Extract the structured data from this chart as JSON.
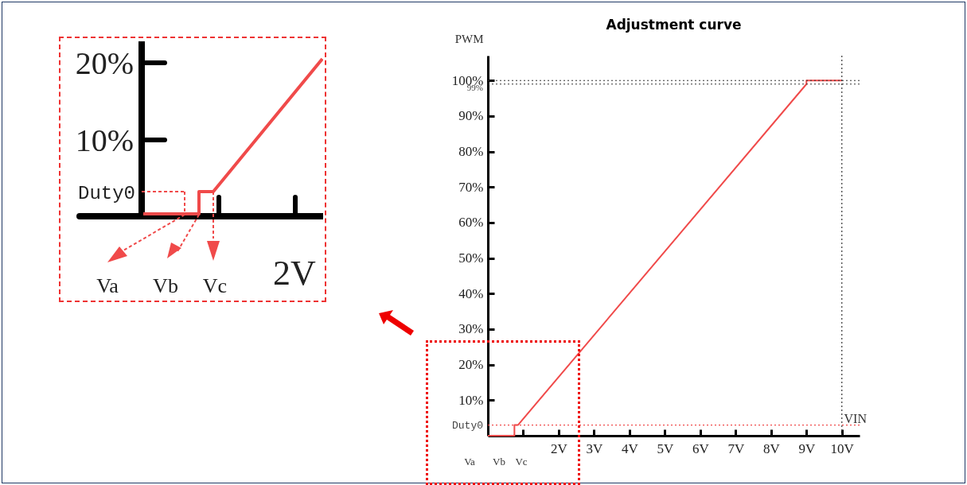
{
  "chart_data": {
    "type": "line",
    "title": "Adjustment curve",
    "xlabel": "VIN",
    "ylabel": "PWM",
    "series": [
      {
        "color": "#f04a4a",
        "x": [
          0,
          0.75,
          0.75,
          0.85,
          9,
          9,
          10
        ],
        "values": [
          0,
          0,
          3,
          3,
          99,
          100,
          100
        ]
      }
    ],
    "xlim": [
      0,
      10.5
    ],
    "ylim": [
      0,
      107
    ],
    "xticks": [
      {
        "value": 1,
        "label": null
      },
      {
        "value": 2,
        "label": "2V"
      },
      {
        "value": 3,
        "label": "3V"
      },
      {
        "value": 4,
        "label": "4V"
      },
      {
        "value": 5,
        "label": "5V"
      },
      {
        "value": 6,
        "label": "6V"
      },
      {
        "value": 7,
        "label": "7V"
      },
      {
        "value": 8,
        "label": "8V"
      },
      {
        "value": 9,
        "label": "9V"
      },
      {
        "value": 10,
        "label": "10V"
      }
    ],
    "yticks": [
      {
        "value": 10,
        "label": "10%"
      },
      {
        "value": 20,
        "label": "20%"
      },
      {
        "value": 30,
        "label": "30%"
      },
      {
        "value": 40,
        "label": "40%"
      },
      {
        "value": 50,
        "label": "50%"
      },
      {
        "value": 60,
        "label": "60%"
      },
      {
        "value": 70,
        "label": "70%"
      },
      {
        "value": 80,
        "label": "80%"
      },
      {
        "value": 90,
        "label": "90%"
      },
      {
        "value": 100,
        "label": "100%"
      }
    ],
    "ref_lines": [
      {
        "axis": "y",
        "value": 100,
        "label": null,
        "color": "#333333",
        "line_style": "dotted"
      },
      {
        "axis": "y",
        "value": 99,
        "label": "99%",
        "color": "#333333",
        "line_style": "dotted"
      },
      {
        "axis": "x",
        "value": 10,
        "label": null,
        "color": "#333333",
        "line_style": "dotted"
      },
      {
        "axis": "y",
        "value": 3,
        "label": "Duty0",
        "color": "#f04a4a",
        "line_style": "dotted"
      }
    ],
    "annotations": [
      "Va",
      "Vb",
      "Vc",
      "20%",
      "10%",
      "Duty0",
      "Va",
      "Vb",
      "Vc",
      "2V"
    ],
    "grid": false
  }
}
